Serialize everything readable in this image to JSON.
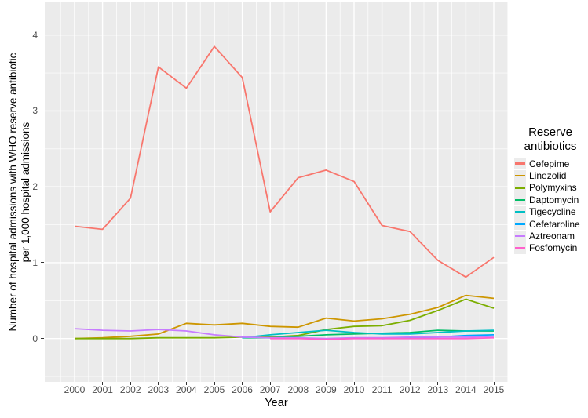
{
  "axes": {
    "y_title_line1": "Number of hospital admissions with WHO reserve antibiotic",
    "y_title_line2": "per 1,000 hospital admissions",
    "x_title": "Year"
  },
  "legend": {
    "title_line1": "Reserve",
    "title_line2": "antibiotics"
  },
  "colors": {
    "panel_background": "#EBEBEB",
    "gridline": "#FFFFFF",
    "tick_label": "#4D4D4D",
    "tick_mark": "#333333"
  },
  "chart_data": {
    "type": "line",
    "title": "",
    "xlabel": "Year",
    "ylabel": "Number of hospital admissions with WHO reserve antibiotic per 1,000 hospital admissions",
    "x": [
      2000,
      2001,
      2002,
      2003,
      2004,
      2005,
      2006,
      2007,
      2008,
      2009,
      2010,
      2011,
      2012,
      2013,
      2014,
      2015
    ],
    "y_ticks": [
      0,
      1,
      2,
      3,
      4
    ],
    "ylim": [
      -0.57,
      4.43
    ],
    "xlim": [
      1998.9,
      2015.5
    ],
    "grid": true,
    "legend_position": "right",
    "legend_title": "Reserve antibiotics",
    "series": [
      {
        "name": "Cefepime",
        "color": "#F8766D",
        "values": [
          1.48,
          1.44,
          1.85,
          3.58,
          3.3,
          3.85,
          3.44,
          1.67,
          2.12,
          2.22,
          2.07,
          1.49,
          1.41,
          1.03,
          0.81,
          1.07
        ]
      },
      {
        "name": "Linezolid",
        "color": "#CD9600",
        "values": [
          0.0,
          0.01,
          0.03,
          0.06,
          0.2,
          0.18,
          0.2,
          0.16,
          0.15,
          0.27,
          0.23,
          0.26,
          0.32,
          0.41,
          0.57,
          0.53
        ]
      },
      {
        "name": "Polymyxins",
        "color": "#7CAE00",
        "values": [
          0.0,
          0.0,
          0.0,
          0.01,
          0.01,
          0.01,
          0.02,
          0.02,
          0.04,
          0.12,
          0.16,
          0.17,
          0.24,
          0.37,
          0.52,
          0.4
        ]
      },
      {
        "name": "Daptomycin",
        "color": "#00BE67",
        "values": [
          null,
          null,
          null,
          null,
          null,
          null,
          0.01,
          0.01,
          0.03,
          0.05,
          0.06,
          0.07,
          0.08,
          0.11,
          0.1,
          0.1
        ]
      },
      {
        "name": "Tigecycline",
        "color": "#00BFC4",
        "values": [
          null,
          null,
          null,
          null,
          null,
          null,
          0.01,
          0.05,
          0.08,
          0.11,
          0.08,
          0.06,
          0.06,
          0.08,
          0.1,
          0.11
        ]
      },
      {
        "name": "Cefetaroline",
        "color": "#00A9FF",
        "values": [
          null,
          null,
          null,
          null,
          null,
          null,
          null,
          null,
          null,
          null,
          null,
          0.0,
          0.01,
          0.02,
          0.04,
          0.05
        ]
      },
      {
        "name": "Aztreonam",
        "color": "#C77CFF",
        "values": [
          0.13,
          0.11,
          0.1,
          0.12,
          0.1,
          0.05,
          0.02,
          0.01,
          0.01,
          0.0,
          0.01,
          0.01,
          0.02,
          0.02,
          0.02,
          0.03
        ]
      },
      {
        "name": "Fosfomycin",
        "color": "#FF61CC",
        "values": [
          null,
          null,
          null,
          null,
          null,
          null,
          null,
          0.0,
          0.0,
          -0.01,
          0.0,
          0.0,
          0.0,
          0.0,
          0.0,
          0.01
        ]
      }
    ]
  }
}
